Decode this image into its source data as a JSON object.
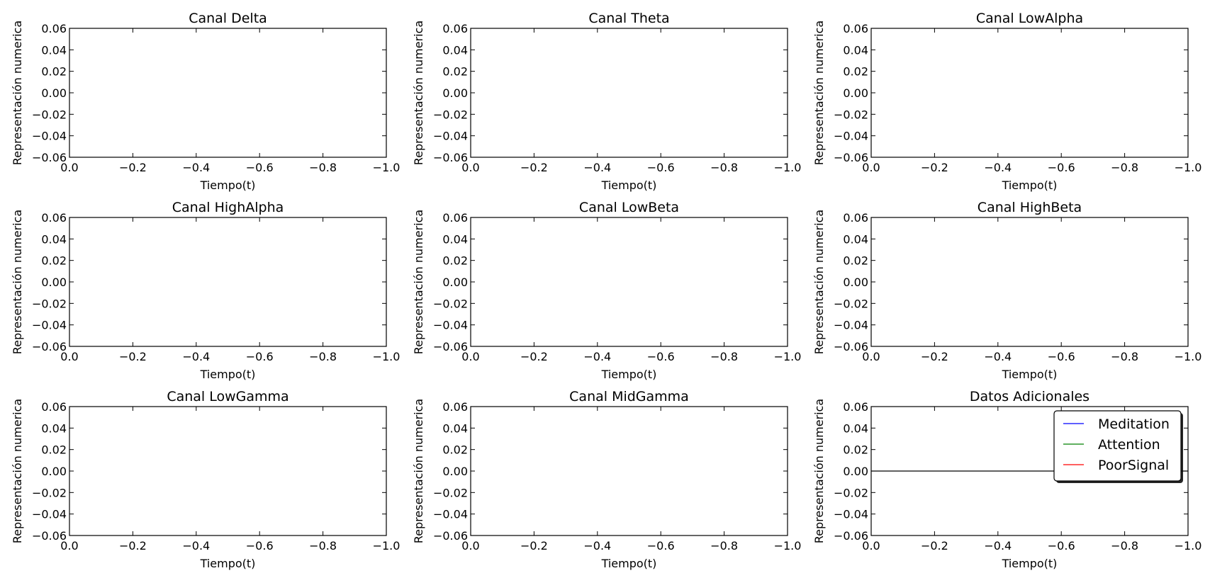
{
  "figure": {
    "background": "#ffffff",
    "axes_color": "#000000"
  },
  "chart_data": [
    {
      "type": "line",
      "title": "Canal Delta",
      "xlabel": "Tiempo(t)",
      "ylabel": "Representación numerica",
      "xlim": [
        0.0,
        -1.0
      ],
      "ylim": [
        -0.06,
        0.06
      ],
      "xticks": [
        0.0,
        -0.2,
        -0.4,
        -0.6,
        -0.8,
        -1.0
      ],
      "xtick_labels": [
        "0.0",
        "−0.2",
        "−0.4",
        "−0.6",
        "−0.8",
        "−1.0"
      ],
      "yticks": [
        0.06,
        0.04,
        0.02,
        0.0,
        -0.02,
        -0.04,
        -0.06
      ],
      "ytick_labels": [
        "0.06",
        "0.04",
        "0.02",
        "0.00",
        "−0.02",
        "−0.04",
        "−0.06"
      ],
      "grid": false,
      "series": []
    },
    {
      "type": "line",
      "title": "Canal Theta",
      "xlabel": "Tiempo(t)",
      "ylabel": "Representación numerica",
      "xlim": [
        0.0,
        -1.0
      ],
      "ylim": [
        -0.06,
        0.06
      ],
      "xticks": [
        0.0,
        -0.2,
        -0.4,
        -0.6,
        -0.8,
        -1.0
      ],
      "xtick_labels": [
        "0.0",
        "−0.2",
        "−0.4",
        "−0.6",
        "−0.8",
        "−1.0"
      ],
      "yticks": [
        0.06,
        0.04,
        0.02,
        0.0,
        -0.02,
        -0.04,
        -0.06
      ],
      "ytick_labels": [
        "0.06",
        "0.04",
        "0.02",
        "0.00",
        "−0.02",
        "−0.04",
        "−0.06"
      ],
      "grid": false,
      "series": []
    },
    {
      "type": "line",
      "title": "Canal LowAlpha",
      "xlabel": "Tiempo(t)",
      "ylabel": "Representación numerica",
      "xlim": [
        0.0,
        -1.0
      ],
      "ylim": [
        -0.06,
        0.06
      ],
      "xticks": [
        0.0,
        -0.2,
        -0.4,
        -0.6,
        -0.8,
        -1.0
      ],
      "xtick_labels": [
        "0.0",
        "−0.2",
        "−0.4",
        "−0.6",
        "−0.8",
        "−1.0"
      ],
      "yticks": [
        0.06,
        0.04,
        0.02,
        0.0,
        -0.02,
        -0.04,
        -0.06
      ],
      "ytick_labels": [
        "0.06",
        "0.04",
        "0.02",
        "0.00",
        "−0.02",
        "−0.04",
        "−0.06"
      ],
      "grid": false,
      "series": []
    },
    {
      "type": "line",
      "title": "Canal HighAlpha",
      "xlabel": "Tiempo(t)",
      "ylabel": "Representación numerica",
      "xlim": [
        0.0,
        -1.0
      ],
      "ylim": [
        -0.06,
        0.06
      ],
      "xticks": [
        0.0,
        -0.2,
        -0.4,
        -0.6,
        -0.8,
        -1.0
      ],
      "xtick_labels": [
        "0.0",
        "−0.2",
        "−0.4",
        "−0.6",
        "−0.8",
        "−1.0"
      ],
      "yticks": [
        0.06,
        0.04,
        0.02,
        0.0,
        -0.02,
        -0.04,
        -0.06
      ],
      "ytick_labels": [
        "0.06",
        "0.04",
        "0.02",
        "0.00",
        "−0.02",
        "−0.04",
        "−0.06"
      ],
      "grid": false,
      "series": []
    },
    {
      "type": "line",
      "title": "Canal LowBeta",
      "xlabel": "Tiempo(t)",
      "ylabel": "Representación numerica",
      "xlim": [
        0.0,
        -1.0
      ],
      "ylim": [
        -0.06,
        0.06
      ],
      "xticks": [
        0.0,
        -0.2,
        -0.4,
        -0.6,
        -0.8,
        -1.0
      ],
      "xtick_labels": [
        "0.0",
        "−0.2",
        "−0.4",
        "−0.6",
        "−0.8",
        "−1.0"
      ],
      "yticks": [
        0.06,
        0.04,
        0.02,
        0.0,
        -0.02,
        -0.04,
        -0.06
      ],
      "ytick_labels": [
        "0.06",
        "0.04",
        "0.02",
        "0.00",
        "−0.02",
        "−0.04",
        "−0.06"
      ],
      "grid": false,
      "series": []
    },
    {
      "type": "line",
      "title": "Canal HighBeta",
      "xlabel": "Tiempo(t)",
      "ylabel": "Representación numerica",
      "xlim": [
        0.0,
        -1.0
      ],
      "ylim": [
        -0.06,
        0.06
      ],
      "xticks": [
        0.0,
        -0.2,
        -0.4,
        -0.6,
        -0.8,
        -1.0
      ],
      "xtick_labels": [
        "0.0",
        "−0.2",
        "−0.4",
        "−0.6",
        "−0.8",
        "−1.0"
      ],
      "yticks": [
        0.06,
        0.04,
        0.02,
        0.0,
        -0.02,
        -0.04,
        -0.06
      ],
      "ytick_labels": [
        "0.06",
        "0.04",
        "0.02",
        "0.00",
        "−0.02",
        "−0.04",
        "−0.06"
      ],
      "grid": false,
      "series": []
    },
    {
      "type": "line",
      "title": "Canal LowGamma",
      "xlabel": "Tiempo(t)",
      "ylabel": "Representación numerica",
      "xlim": [
        0.0,
        -1.0
      ],
      "ylim": [
        -0.06,
        0.06
      ],
      "xticks": [
        0.0,
        -0.2,
        -0.4,
        -0.6,
        -0.8,
        -1.0
      ],
      "xtick_labels": [
        "0.0",
        "−0.2",
        "−0.4",
        "−0.6",
        "−0.8",
        "−1.0"
      ],
      "yticks": [
        0.06,
        0.04,
        0.02,
        0.0,
        -0.02,
        -0.04,
        -0.06
      ],
      "ytick_labels": [
        "0.06",
        "0.04",
        "0.02",
        "0.00",
        "−0.02",
        "−0.04",
        "−0.06"
      ],
      "grid": false,
      "series": []
    },
    {
      "type": "line",
      "title": "Canal MidGamma",
      "xlabel": "Tiempo(t)",
      "ylabel": "Representación numerica",
      "xlim": [
        0.0,
        -1.0
      ],
      "ylim": [
        -0.06,
        0.06
      ],
      "xticks": [
        0.0,
        -0.2,
        -0.4,
        -0.6,
        -0.8,
        -1.0
      ],
      "xtick_labels": [
        "0.0",
        "−0.2",
        "−0.4",
        "−0.6",
        "−0.8",
        "−1.0"
      ],
      "yticks": [
        0.06,
        0.04,
        0.02,
        0.0,
        -0.02,
        -0.04,
        -0.06
      ],
      "ytick_labels": [
        "0.06",
        "0.04",
        "0.02",
        "0.00",
        "−0.02",
        "−0.04",
        "−0.06"
      ],
      "grid": false,
      "series": []
    },
    {
      "type": "line",
      "title": "Datos Adicionales",
      "xlabel": "Tiempo(t)",
      "ylabel": "Representación numerica",
      "xlim": [
        0.0,
        -1.0
      ],
      "ylim": [
        -0.06,
        0.06
      ],
      "xticks": [
        0.0,
        -0.2,
        -0.4,
        -0.6,
        -0.8,
        -1.0
      ],
      "xtick_labels": [
        "0.0",
        "−0.2",
        "−0.4",
        "−0.6",
        "−0.8",
        "−1.0"
      ],
      "yticks": [
        0.06,
        0.04,
        0.02,
        0.0,
        -0.02,
        -0.04,
        -0.06
      ],
      "ytick_labels": [
        "0.06",
        "0.04",
        "0.02",
        "0.00",
        "−0.02",
        "−0.04",
        "−0.06"
      ],
      "grid": false,
      "hlines": [
        0.0
      ],
      "legend_position": "top-right",
      "legend": [
        {
          "name": "Meditation",
          "color": "#0000ff"
        },
        {
          "name": "Attention",
          "color": "#008000"
        },
        {
          "name": "PoorSignal",
          "color": "#ff0000"
        }
      ],
      "series": []
    }
  ]
}
